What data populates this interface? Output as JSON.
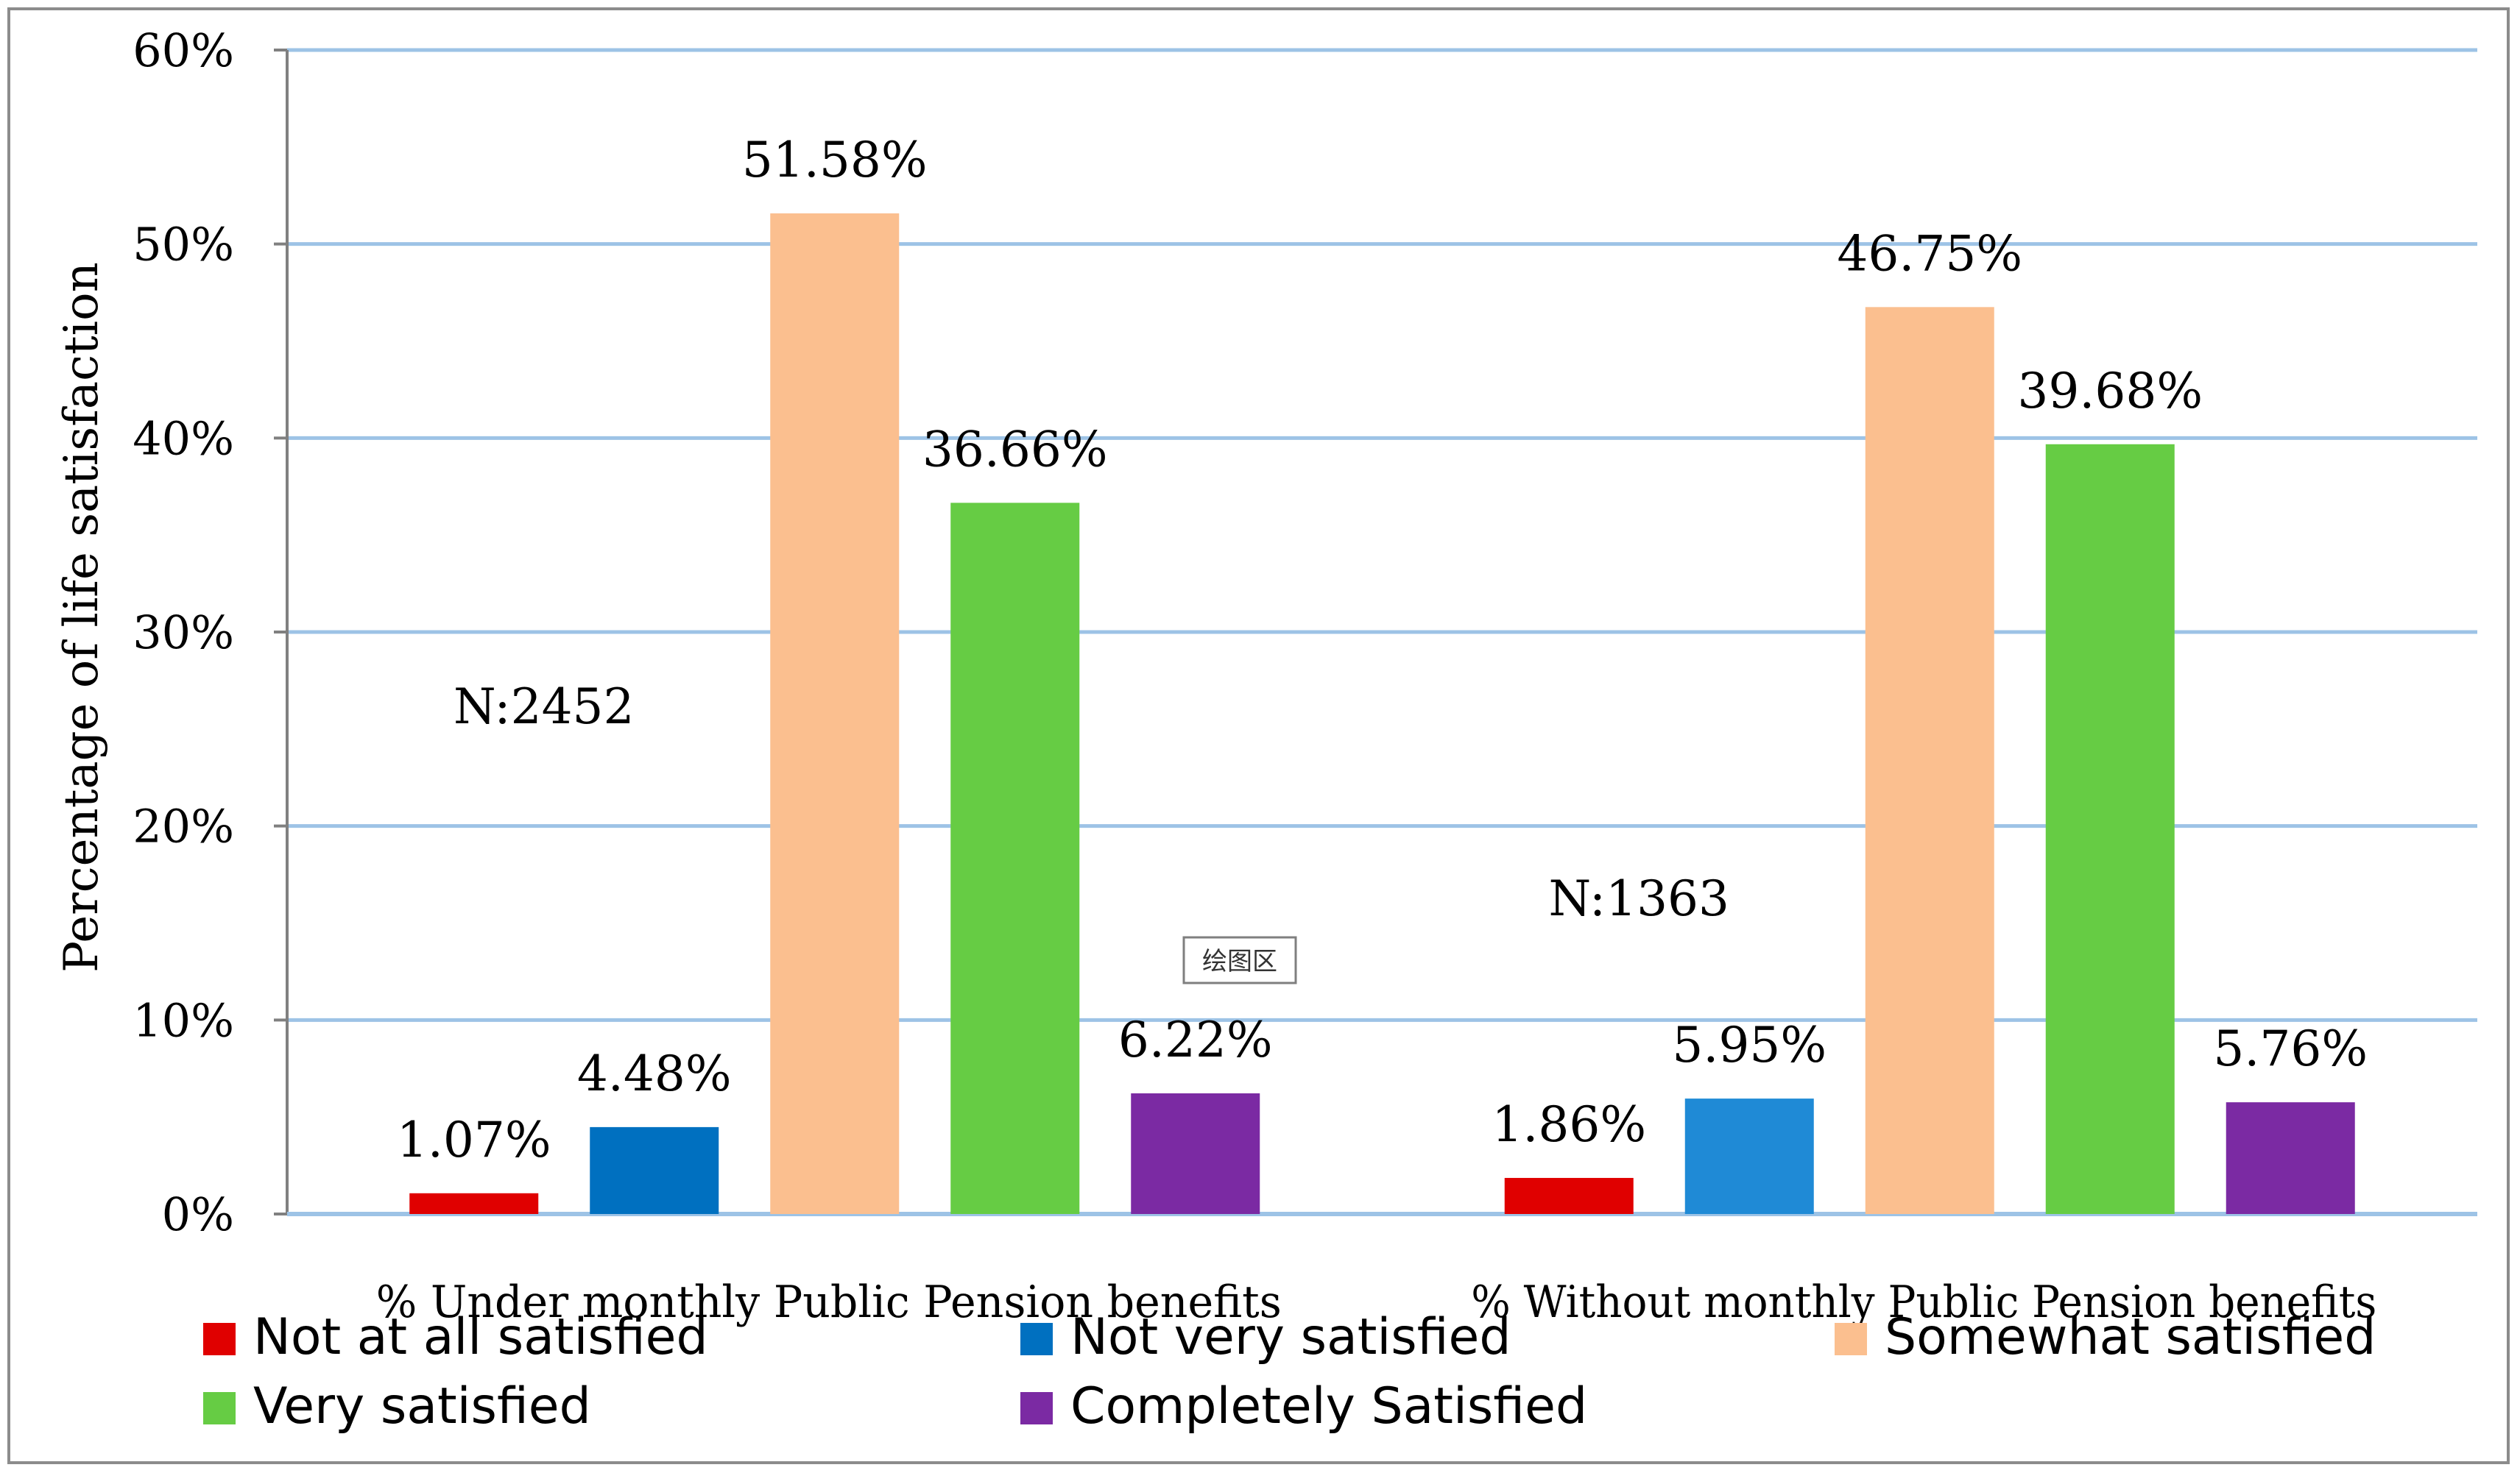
{
  "chart_data": {
    "type": "bar",
    "title": "",
    "xlabel": "",
    "ylabel": "Percentage of life satisfaction",
    "ylim": [
      0,
      60
    ],
    "yticks": [
      {
        "value": 0,
        "label": "0%"
      },
      {
        "value": 10,
        "label": "10%"
      },
      {
        "value": 20,
        "label": "20%"
      },
      {
        "value": 30,
        "label": "30%"
      },
      {
        "value": 40,
        "label": "40%"
      },
      {
        "value": 50,
        "label": "50%"
      },
      {
        "value": 60,
        "label": "60%"
      }
    ],
    "grid": true,
    "categories": [
      "% Under monthly Public Pension benefits",
      "% Without monthly Public Pension benefits"
    ],
    "series": [
      {
        "name": "Not at all satisfied",
        "color": "#e00000",
        "values": [
          1.07,
          1.86
        ],
        "labels": [
          "1.07%",
          "1.86%"
        ]
      },
      {
        "name": "Not very satisfied",
        "colors": [
          "#0070c0",
          "#1f8ad6"
        ],
        "color": "#0070c0",
        "values": [
          4.48,
          5.95
        ],
        "labels": [
          "4.48%",
          "5.95%"
        ]
      },
      {
        "name": "Somewhat satisfied",
        "color": "#fbbf8f",
        "values": [
          51.58,
          46.75
        ],
        "labels": [
          "51.58%",
          "46.75%"
        ]
      },
      {
        "name": "Very satisfied",
        "color": "#66cc44",
        "values": [
          36.66,
          39.68
        ],
        "labels": [
          "36.66%",
          "39.68%"
        ]
      },
      {
        "name": "Completely Satisfied",
        "color": "#7b2aa3",
        "values": [
          6.22,
          5.76
        ],
        "labels": [
          "6.22%",
          "5.76%"
        ]
      }
    ],
    "annotations": [
      {
        "text": "N:2452",
        "category": 0,
        "value": 25.3
      },
      {
        "text": "N:1363",
        "category": 1,
        "value": 15.4
      }
    ],
    "tooltip": "绘图区",
    "legend_position": "bottom"
  },
  "colors": {
    "gridline": "#9dc3e6",
    "axis": "#808080",
    "text": "#000000"
  }
}
